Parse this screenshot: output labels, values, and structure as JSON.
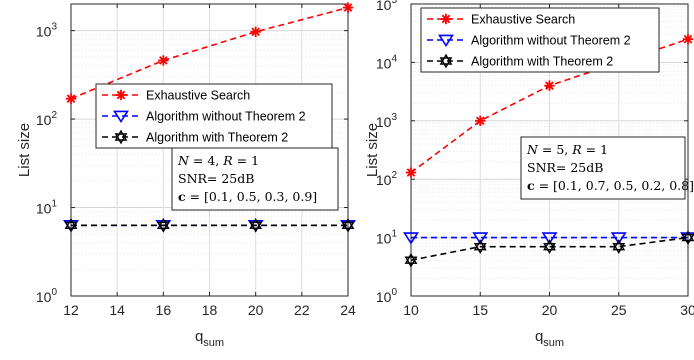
{
  "chart_data": [
    {
      "type": "line",
      "panel": "left",
      "xlabel": "q",
      "xlabel_sub": "sum",
      "ylabel": "List size",
      "x": [
        12,
        16,
        20,
        24
      ],
      "xticks": [
        "12",
        "14",
        "16",
        "18",
        "20",
        "22",
        "24"
      ],
      "yticks": [
        {
          "base": "10",
          "exp": "0"
        },
        {
          "base": "10",
          "exp": "1"
        },
        {
          "base": "10",
          "exp": "2"
        },
        {
          "base": "10",
          "exp": "3"
        }
      ],
      "xlim": [
        12,
        24
      ],
      "ylim": [
        1,
        2000
      ],
      "yscale": "log",
      "grid": true,
      "legend_position": "center-right",
      "series": [
        {
          "name": "Exhaustive Search",
          "color": "#ff0000",
          "marker": "asterisk",
          "values": [
            170,
            460,
            970,
            1820
          ]
        },
        {
          "name": "Algorithm without Theorem 2",
          "color": "#0000ff",
          "marker": "triangle-down",
          "values": [
            6.3,
            6.3,
            6.3,
            6.3
          ]
        },
        {
          "name": "Algorithm with Theorem 2",
          "color": "#000000",
          "marker": "hexagram",
          "values": [
            6.3,
            6.3,
            6.3,
            6.3
          ]
        }
      ],
      "annotation": [
        "N = 4, R = 1",
        "SNR= 25dB",
        "c = [0.1, 0.5, 0.3, 0.9]"
      ]
    },
    {
      "type": "line",
      "panel": "right",
      "xlabel": "q",
      "xlabel_sub": "sum",
      "ylabel": "List size",
      "x": [
        10,
        15,
        20,
        25,
        30
      ],
      "xticks": [
        "10",
        "15",
        "20",
        "25",
        "30"
      ],
      "yticks": [
        {
          "base": "10",
          "exp": "0"
        },
        {
          "base": "10",
          "exp": "1"
        },
        {
          "base": "10",
          "exp": "2"
        },
        {
          "base": "10",
          "exp": "3"
        },
        {
          "base": "10",
          "exp": "4"
        },
        {
          "base": "10",
          "exp": "5"
        }
      ],
      "xlim": [
        10,
        30
      ],
      "ylim": [
        1,
        100000
      ],
      "yscale": "log",
      "grid": true,
      "legend_position": "top",
      "series": [
        {
          "name": "Exhaustive Search",
          "color": "#ff0000",
          "marker": "asterisk",
          "values": [
            130,
            1000,
            4000,
            10000,
            25000
          ]
        },
        {
          "name": "Algorithm without Theorem 2",
          "color": "#0000ff",
          "marker": "triangle-down",
          "values": [
            10,
            10,
            10,
            10,
            10
          ]
        },
        {
          "name": "Algorithm with Theorem 2",
          "color": "#000000",
          "marker": "hexagram",
          "values": [
            4.1,
            7,
            7,
            7,
            10
          ]
        }
      ],
      "annotation": [
        "N = 5, R = 1",
        "SNR= 25dB",
        "c = [0.1, 0.7, 0.5, 0.2, 0.8]"
      ]
    }
  ]
}
